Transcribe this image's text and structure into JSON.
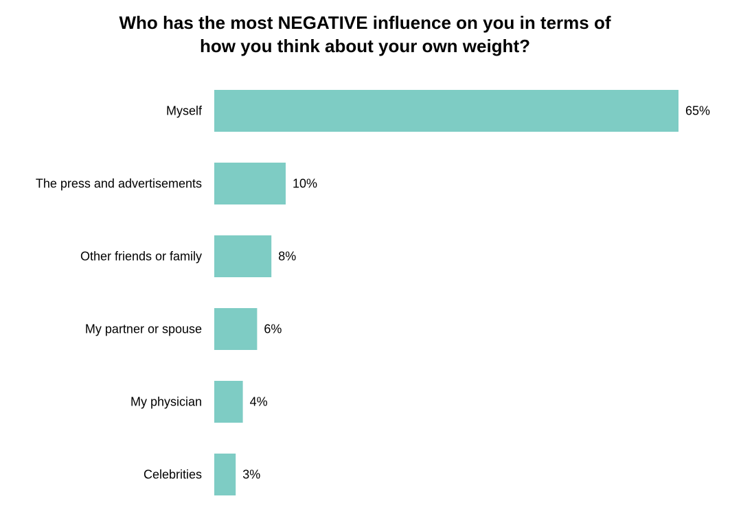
{
  "chart_data": {
    "type": "bar",
    "orientation": "horizontal",
    "title_lines": [
      "Who has the most NEGATIVE influence on you in terms of",
      "how you think about your own weight?"
    ],
    "categories": [
      "Myself",
      "The press and advertisements",
      "Other friends or family",
      "My partner or spouse",
      "My physician",
      "Celebrities"
    ],
    "values": [
      65,
      10,
      8,
      6,
      4,
      3
    ],
    "value_labels": [
      "65%",
      "10%",
      "8%",
      "6%",
      "4%",
      "3%"
    ],
    "unit": "%",
    "xlim": [
      0,
      65
    ],
    "grid": false,
    "legend": "none",
    "bar_color": "#7ECCC4"
  }
}
